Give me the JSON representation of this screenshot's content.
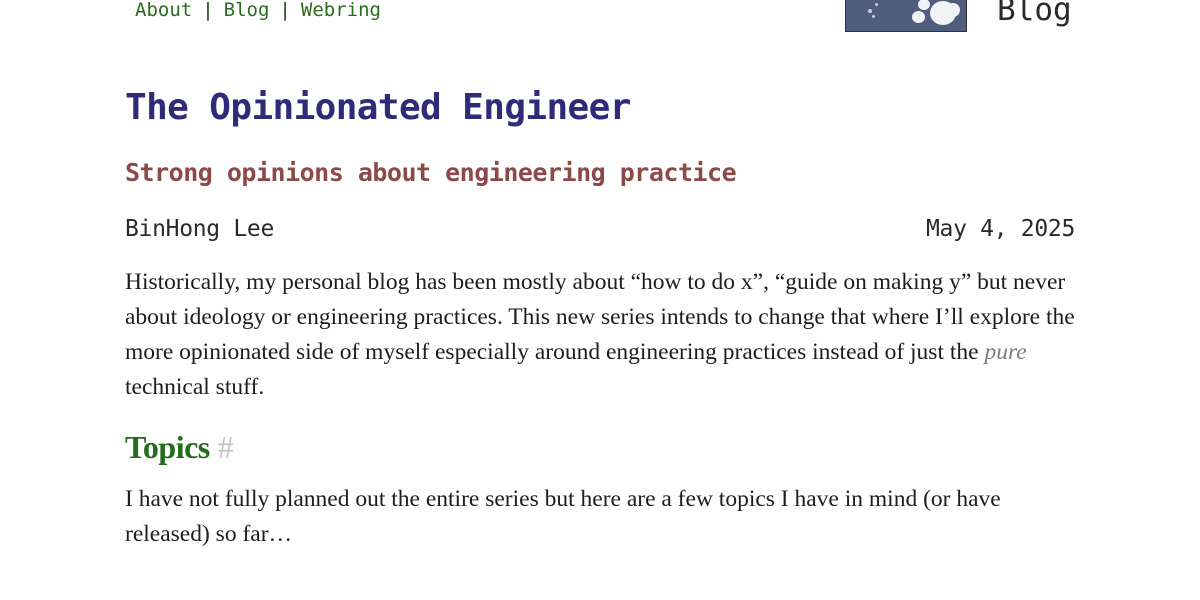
{
  "nav": {
    "items": [
      {
        "label": "About"
      },
      {
        "label": "Blog"
      },
      {
        "label": "Webring"
      }
    ],
    "separator": "|"
  },
  "header": {
    "section_label": "Blog"
  },
  "post": {
    "title": "The Opinionated Engineer",
    "subtitle": "Strong opinions about engineering practice",
    "author": "BinHong Lee",
    "date": "May 4, 2025",
    "intro": {
      "before_emphasis": "Historically, my personal blog has been mostly about “how to do x”, “guide on making y” but never about ideology or engineering practices. This new series intends to change that where I’ll explore the more opinionated side of myself especially around engineering practices instead of just the ",
      "emphasis": "pure",
      "after_emphasis": " technical stuff."
    },
    "topics_heading": "Topics",
    "heading_anchor": "#",
    "topics_intro": "I have not fully planned out the entire series but here are a few topics I have in mind (or have released) so far…"
  },
  "colors": {
    "nav_link": "#2e6a1f",
    "title": "#2f2b78",
    "subtitle": "#8b4a48",
    "heading": "#256b1c",
    "anchor": "#c4c4c4",
    "emphasis": "#7d7d7d",
    "banner": "#4f5e7c"
  },
  "icons": {
    "banner": "pixel-art-banner-image",
    "anchor": "hash-anchor-link"
  }
}
